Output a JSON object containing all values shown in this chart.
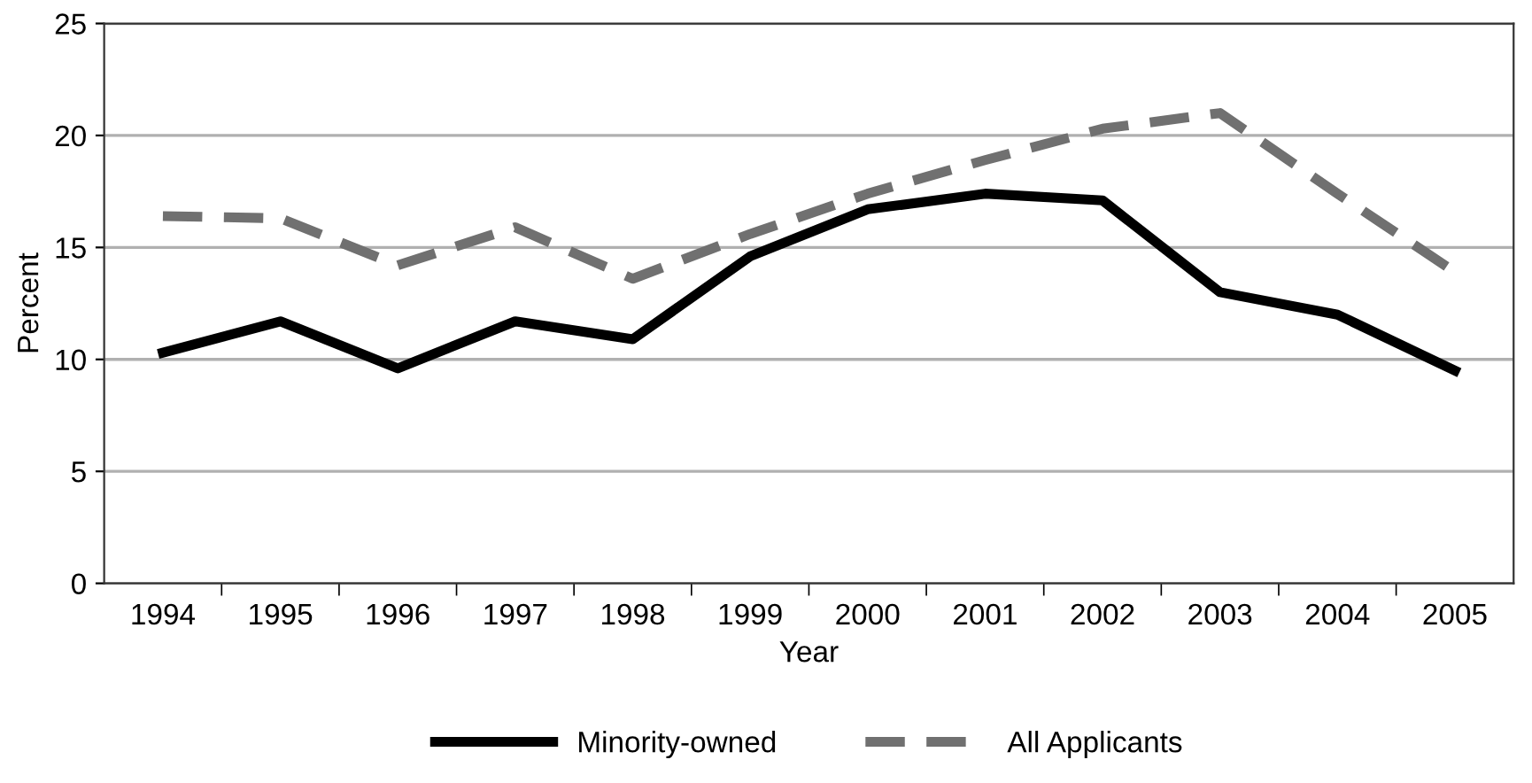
{
  "chart_data": {
    "type": "line",
    "xlabel": "Year",
    "ylabel": "Percent",
    "categories": [
      "1994",
      "1995",
      "1996",
      "1997",
      "1998",
      "1999",
      "2000",
      "2001",
      "2002",
      "2003",
      "2004",
      "2005"
    ],
    "series": [
      {
        "name": "Minority-owned",
        "color": "#000000",
        "line_style": "solid",
        "values": [
          10.3,
          11.7,
          9.6,
          11.7,
          10.9,
          14.6,
          16.7,
          17.4,
          17.1,
          13.0,
          12.0,
          9.5
        ]
      },
      {
        "name": "All Applicants",
        "color": "#707070",
        "line_style": "dashed",
        "values": [
          16.4,
          16.3,
          14.2,
          15.9,
          13.6,
          15.6,
          17.4,
          18.9,
          20.3,
          21.0,
          17.4,
          13.9
        ]
      }
    ],
    "ylim": [
      0,
      25
    ],
    "yticks": [
      0,
      5,
      10,
      15,
      20,
      25
    ],
    "grid": "y",
    "legend": "bottom",
    "marker": "none"
  }
}
